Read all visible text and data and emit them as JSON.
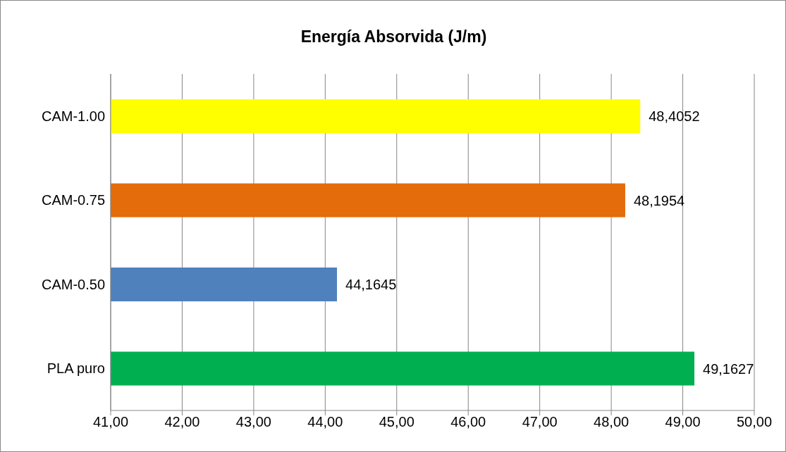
{
  "chart_data": {
    "type": "bar",
    "orientation": "horizontal",
    "title": "Energía Absorvida (J/m)",
    "categories": [
      "CAM-1.00",
      "CAM-0.75",
      "CAM-0.50",
      "PLA puro"
    ],
    "values": [
      48.4052,
      48.1954,
      44.1645,
      49.1627
    ],
    "colors": [
      "#ffff00",
      "#e46c0a",
      "#4f81bd",
      "#00b050"
    ],
    "value_labels": [
      "48,4052",
      "48,1954",
      "44,1645",
      "49,1627"
    ],
    "xlim": [
      41,
      50
    ],
    "xticks": [
      {
        "value": 41,
        "label": "41,00"
      },
      {
        "value": 42,
        "label": "42,00"
      },
      {
        "value": 43,
        "label": "43,00"
      },
      {
        "value": 44,
        "label": "44,00"
      },
      {
        "value": 45,
        "label": "45,00"
      },
      {
        "value": 46,
        "label": "46,00"
      },
      {
        "value": 47,
        "label": "47,00"
      },
      {
        "value": 48,
        "label": "48,00"
      },
      {
        "value": 49,
        "label": "49,00"
      },
      {
        "value": 50,
        "label": "50,00"
      }
    ],
    "grid": "x",
    "legend": false
  }
}
